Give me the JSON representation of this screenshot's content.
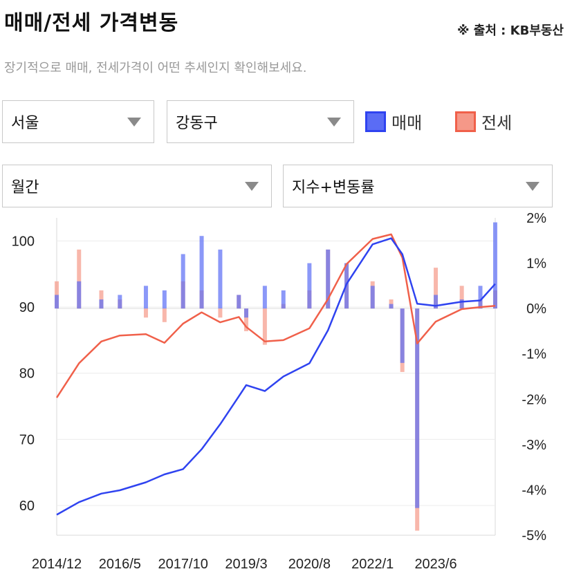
{
  "header": {
    "title": "매매/전세 가격변동",
    "source": "※ 출처 : KB부동산",
    "subtitle": "장기적으로 매매, 전세가격이 어떤 추세인지 확인해보세요."
  },
  "filters": {
    "region": "서울",
    "district": "강동구",
    "period": "월간",
    "metric": "지수+변동률"
  },
  "legend": [
    {
      "label": "매매",
      "color": "#2f43f0",
      "fill": "#5a6cf5"
    },
    {
      "label": "전세",
      "color": "#f0604a",
      "fill": "#f59888"
    }
  ],
  "chart_data": {
    "type": "line",
    "x_tick_labels": [
      "2014/12",
      "2016/5",
      "2017/10",
      "2019/3",
      "2020/8",
      "2022/1",
      "2023/6"
    ],
    "y_left_ticks": [
      "60",
      "70",
      "80",
      "90",
      "100"
    ],
    "y_right_ticks": [
      "2%",
      "1%",
      "0%",
      "-1%",
      "-2%",
      "-3%",
      "-4%",
      "-5%"
    ],
    "ylim_left": [
      55.5,
      103.5
    ],
    "ylim_right": [
      -5,
      2
    ],
    "grid": true,
    "sale_index": [
      {
        "x": "2014/12",
        "y": 58.6
      },
      {
        "x": "2015/6",
        "y": 60.5
      },
      {
        "x": "2015/12",
        "y": 61.8
      },
      {
        "x": "2016/5",
        "y": 62.3
      },
      {
        "x": "2016/12",
        "y": 63.5
      },
      {
        "x": "2017/5",
        "y": 64.7
      },
      {
        "x": "2017/10",
        "y": 65.5
      },
      {
        "x": "2018/3",
        "y": 68.5
      },
      {
        "x": "2018/8",
        "y": 72.3
      },
      {
        "x": "2019/1",
        "y": 76.5
      },
      {
        "x": "2019/3",
        "y": 78.2
      },
      {
        "x": "2019/8",
        "y": 77.3
      },
      {
        "x": "2020/1",
        "y": 79.5
      },
      {
        "x": "2020/8",
        "y": 81.5
      },
      {
        "x": "2021/1",
        "y": 86.5
      },
      {
        "x": "2021/6",
        "y": 93.5
      },
      {
        "x": "2022/1",
        "y": 99.5
      },
      {
        "x": "2022/6",
        "y": 100.4
      },
      {
        "x": "2022/9",
        "y": 98.0
      },
      {
        "x": "2023/1",
        "y": 90.5
      },
      {
        "x": "2023/6",
        "y": 90.2
      },
      {
        "x": "2024/1",
        "y": 90.8
      },
      {
        "x": "2024/6",
        "y": 91.0
      },
      {
        "x": "2024/10",
        "y": 93.5
      }
    ],
    "jeonse_index": [
      {
        "x": "2014/12",
        "y": 76.3
      },
      {
        "x": "2015/6",
        "y": 81.5
      },
      {
        "x": "2015/12",
        "y": 84.8
      },
      {
        "x": "2016/5",
        "y": 85.7
      },
      {
        "x": "2016/12",
        "y": 85.9
      },
      {
        "x": "2017/5",
        "y": 84.6
      },
      {
        "x": "2017/10",
        "y": 87.5
      },
      {
        "x": "2018/3",
        "y": 89.2
      },
      {
        "x": "2018/8",
        "y": 87.7
      },
      {
        "x": "2019/1",
        "y": 88.5
      },
      {
        "x": "2019/3",
        "y": 87.0
      },
      {
        "x": "2019/8",
        "y": 84.8
      },
      {
        "x": "2020/1",
        "y": 85.0
      },
      {
        "x": "2020/8",
        "y": 86.8
      },
      {
        "x": "2021/1",
        "y": 91.2
      },
      {
        "x": "2021/6",
        "y": 96.5
      },
      {
        "x": "2022/1",
        "y": 100.3
      },
      {
        "x": "2022/6",
        "y": 101.0
      },
      {
        "x": "2022/9",
        "y": 97.5
      },
      {
        "x": "2023/1",
        "y": 84.5
      },
      {
        "x": "2023/6",
        "y": 87.8
      },
      {
        "x": "2024/1",
        "y": 89.7
      },
      {
        "x": "2024/6",
        "y": 90.0
      },
      {
        "x": "2024/10",
        "y": 90.2
      }
    ],
    "sale_change_pct": [
      {
        "x": "2014/12",
        "y": 0.3
      },
      {
        "x": "2015/6",
        "y": 0.6
      },
      {
        "x": "2015/12",
        "y": 0.2
      },
      {
        "x": "2016/5",
        "y": 0.3
      },
      {
        "x": "2016/12",
        "y": 0.5
      },
      {
        "x": "2017/5",
        "y": 0.4
      },
      {
        "x": "2017/10",
        "y": 1.2
      },
      {
        "x": "2018/3",
        "y": 1.6
      },
      {
        "x": "2018/8",
        "y": 1.3
      },
      {
        "x": "2019/1",
        "y": 0.3
      },
      {
        "x": "2019/3",
        "y": -0.2
      },
      {
        "x": "2019/8",
        "y": 0.5
      },
      {
        "x": "2020/1",
        "y": 0.4
      },
      {
        "x": "2020/8",
        "y": 1.0
      },
      {
        "x": "2021/1",
        "y": 1.3
      },
      {
        "x": "2021/6",
        "y": 1.0
      },
      {
        "x": "2022/1",
        "y": 0.5
      },
      {
        "x": "2022/6",
        "y": 0.1
      },
      {
        "x": "2022/9",
        "y": -1.2
      },
      {
        "x": "2023/1",
        "y": -4.4
      },
      {
        "x": "2023/6",
        "y": 0.3
      },
      {
        "x": "2024/1",
        "y": 0.2
      },
      {
        "x": "2024/6",
        "y": 0.5
      },
      {
        "x": "2024/10",
        "y": 1.9
      }
    ],
    "jeonse_change_pct": [
      {
        "x": "2014/12",
        "y": 0.6
      },
      {
        "x": "2015/6",
        "y": 1.3
      },
      {
        "x": "2015/12",
        "y": 0.4
      },
      {
        "x": "2016/5",
        "y": 0.2
      },
      {
        "x": "2016/12",
        "y": -0.2
      },
      {
        "x": "2017/5",
        "y": -0.3
      },
      {
        "x": "2017/10",
        "y": 0.6
      },
      {
        "x": "2018/3",
        "y": 0.4
      },
      {
        "x": "2018/8",
        "y": -0.2
      },
      {
        "x": "2019/1",
        "y": 0.3
      },
      {
        "x": "2019/3",
        "y": -0.5
      },
      {
        "x": "2019/8",
        "y": -0.8
      },
      {
        "x": "2020/1",
        "y": 0.1
      },
      {
        "x": "2020/8",
        "y": 0.4
      },
      {
        "x": "2021/1",
        "y": 1.3
      },
      {
        "x": "2021/6",
        "y": 1.0
      },
      {
        "x": "2022/1",
        "y": 0.6
      },
      {
        "x": "2022/6",
        "y": 0.2
      },
      {
        "x": "2022/9",
        "y": -1.4
      },
      {
        "x": "2023/1",
        "y": -4.9
      },
      {
        "x": "2023/6",
        "y": 0.9
      },
      {
        "x": "2024/1",
        "y": 0.5
      },
      {
        "x": "2024/6",
        "y": 0.2
      },
      {
        "x": "2024/10",
        "y": 0.4
      }
    ]
  }
}
